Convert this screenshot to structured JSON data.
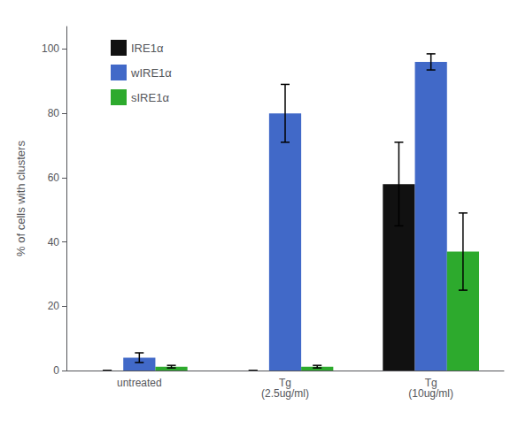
{
  "chart_data": {
    "type": "bar",
    "categories": [
      "untreated",
      "Tg\n(2.5ug/ml)",
      "Tg\n(10ug/ml)"
    ],
    "series": [
      {
        "name": "IRE1α",
        "color": "#111111",
        "values": [
          0.0,
          0.0,
          58.0
        ],
        "errors": [
          0.0,
          0.0,
          13.0
        ]
      },
      {
        "name": "wIRE1α",
        "color": "#4169c8",
        "values": [
          4.0,
          80.0,
          96.0
        ],
        "errors": [
          1.5,
          9.0,
          2.5
        ]
      },
      {
        "name": "sIRE1α",
        "color": "#2daa2d",
        "values": [
          1.2,
          1.2,
          37.0
        ],
        "errors": [
          0.4,
          0.4,
          12.0
        ]
      }
    ],
    "ylabel": "% of cells with clusters",
    "ylim": [
      0,
      107
    ],
    "yticks": [
      0,
      20,
      40,
      60,
      80,
      100
    ],
    "grid": false,
    "legend": "upper left"
  }
}
